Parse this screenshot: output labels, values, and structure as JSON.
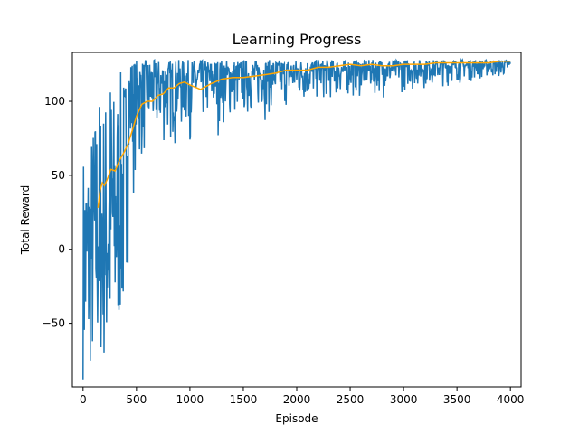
{
  "chart_data": {
    "type": "line",
    "title": "Learning Progress",
    "xlabel": "Episode",
    "ylabel": "Total Reward",
    "xlim": [
      -100,
      4100
    ],
    "ylim": [
      -93,
      133
    ],
    "xticks": [
      0,
      500,
      1000,
      1500,
      2000,
      2500,
      3000,
      3500,
      4000
    ],
    "xtick_labels": [
      "0",
      "500",
      "1000",
      "1500",
      "2000",
      "2500",
      "3000",
      "3500",
      "4000"
    ],
    "yticks": [
      -50,
      0,
      50,
      100
    ],
    "ytick_labels": [
      "−50",
      "0",
      "50",
      "100"
    ],
    "grid": false,
    "colors": {
      "raw": "#1f77b4",
      "moving_average": "#ffa500"
    },
    "series": [
      {
        "style": "noisy-envelope",
        "note_points": "per-episode reward, x = episode, y_top / y_bottom = upper and lower extent of oscillation",
        "x": [
          0,
          50,
          100,
          150,
          200,
          250,
          300,
          350,
          400,
          450,
          500,
          600,
          700,
          800,
          900,
          1000,
          1200,
          1400,
          1600,
          1800,
          2000,
          2200,
          2400,
          2600,
          2800,
          3000,
          3200,
          3400,
          3600,
          3800,
          4000
        ],
        "y_top": [
          68,
          70,
          90,
          108,
          100,
          128,
          105,
          120,
          125,
          128,
          128,
          128,
          128,
          128,
          128,
          128,
          128,
          128,
          128,
          128,
          128,
          128,
          128,
          128,
          128,
          128,
          128,
          128,
          128,
          128,
          128
        ],
        "y_bottom": [
          -88,
          -85,
          -82,
          -75,
          -80,
          -83,
          -65,
          -50,
          -55,
          20,
          30,
          45,
          50,
          55,
          60,
          65,
          70,
          75,
          80,
          85,
          88,
          92,
          95,
          98,
          100,
          102,
          105,
          108,
          110,
          112,
          112
        ]
      },
      {
        "style": "line",
        "note_points": "moving average of reward",
        "x": [
          140,
          160,
          180,
          200,
          230,
          260,
          300,
          340,
          380,
          420,
          460,
          500,
          550,
          600,
          650,
          700,
          750,
          800,
          850,
          900,
          950,
          1000,
          1100,
          1200,
          1300,
          1400,
          1500,
          1600,
          1700,
          1800,
          1900,
          2000,
          2100,
          2200,
          2300,
          2400,
          2500,
          2600,
          2700,
          2800,
          2900,
          3000,
          3100,
          3200,
          3300,
          3400,
          3500,
          3600,
          3700,
          3800,
          3900,
          4000
        ],
        "y": [
          28,
          40,
          45,
          43,
          48,
          54,
          53,
          60,
          65,
          71,
          80,
          90,
          98,
          100,
          100,
          104,
          105,
          109,
          109,
          112,
          113,
          111,
          108,
          112,
          115,
          116,
          116,
          117,
          118,
          119,
          121,
          121,
          121,
          123,
          123,
          124,
          125,
          124,
          125,
          124,
          124,
          125,
          125,
          125,
          126,
          126,
          126,
          126,
          126,
          126,
          127,
          127
        ]
      }
    ]
  }
}
